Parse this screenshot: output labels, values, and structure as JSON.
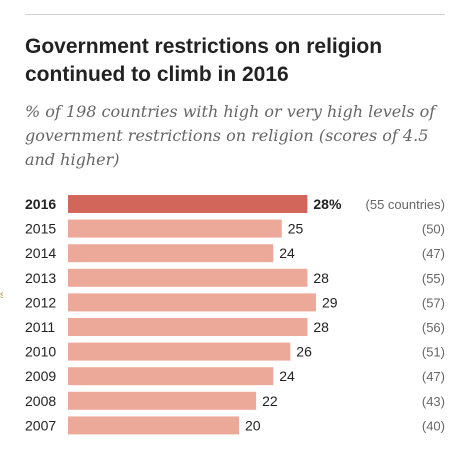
{
  "title": "Government restrictions on religion continued to climb in 2016",
  "subtitle": "% of 198 countries with high or very high levels of government restrictions on religion (scores of 4.5 and higher)",
  "edge_mark": "s",
  "colors": {
    "highlight": "#d2665a",
    "bar": "#eca99a"
  },
  "chart_data": {
    "type": "bar",
    "orientation": "horizontal",
    "title": "Government restrictions on religion continued to climb in 2016",
    "subtitle": "% of 198 countries with high or very high levels of government restrictions on religion (scores of 4.5 and higher)",
    "unit": "%",
    "categories": [
      "2016",
      "2015",
      "2014",
      "2013",
      "2012",
      "2011",
      "2010",
      "2009",
      "2008",
      "2007"
    ],
    "values": [
      28,
      25,
      24,
      28,
      29,
      28,
      26,
      24,
      22,
      20
    ],
    "value_labels": [
      "28%",
      "25",
      "24",
      "28",
      "29",
      "28",
      "26",
      "24",
      "22",
      "20"
    ],
    "counts": [
      "(55 countries)",
      "(50)",
      "(47)",
      "(55)",
      "(57)",
      "(56)",
      "(51)",
      "(47)",
      "(43)",
      "(40)"
    ],
    "highlight": "2016",
    "grid": false,
    "legend": "none"
  }
}
